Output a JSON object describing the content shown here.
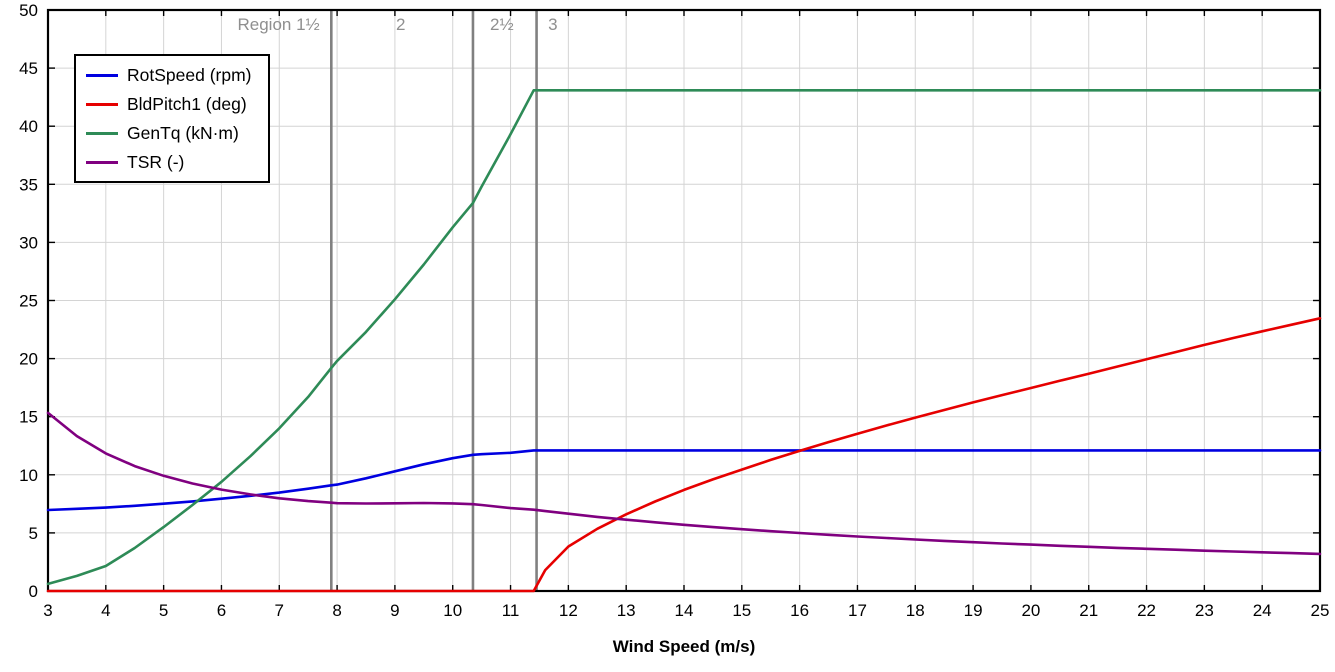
{
  "chart_data": {
    "type": "line",
    "title": "",
    "xlabel": "Wind Speed (m/s)",
    "ylabel": "",
    "xlim": [
      3,
      25
    ],
    "ylim": [
      0,
      50
    ],
    "xtick_step": 1,
    "ytick_step": 5,
    "grid": true,
    "grid_color": "#d4d4d4",
    "axis_color": "#000000",
    "legend_position": "top-left",
    "region_line_color": "#808080",
    "region_label_color": "#8f8f8f",
    "region_lines": [
      {
        "x": 7.9
      },
      {
        "x": 10.35
      },
      {
        "x": 11.45
      }
    ],
    "region_labels": [
      {
        "text": "Region 1½",
        "x": 7.7,
        "align": "end"
      },
      {
        "text": "2",
        "x": 9.1,
        "align": "middle"
      },
      {
        "text": "2½",
        "x": 10.85,
        "align": "middle"
      },
      {
        "text": "3",
        "x": 11.65,
        "align": "start"
      }
    ],
    "x": [
      3,
      3.5,
      4,
      4.5,
      5,
      5.5,
      6,
      6.5,
      7,
      7.5,
      7.9,
      8,
      8.5,
      9,
      9.5,
      10,
      10.35,
      10.5,
      11,
      11.4,
      11.6,
      12,
      12.5,
      13,
      13.5,
      14,
      14.5,
      15,
      15.5,
      16,
      16.5,
      17,
      17.5,
      18,
      18.5,
      19,
      19.5,
      20,
      20.5,
      21,
      21.5,
      22,
      22.5,
      23,
      23.5,
      24,
      24.5,
      25
    ],
    "series": [
      {
        "name": "RotSpeed",
        "label": "RotSpeed (rpm)",
        "color": "#0000e0",
        "values": [
          6.97,
          7.07,
          7.18,
          7.33,
          7.51,
          7.71,
          7.94,
          8.19,
          8.47,
          8.8,
          9.1,
          9.16,
          9.7,
          10.3,
          10.9,
          11.43,
          11.72,
          11.77,
          11.89,
          12.1,
          12.1,
          12.1,
          12.1,
          12.1,
          12.1,
          12.1,
          12.1,
          12.1,
          12.1,
          12.1,
          12.1,
          12.1,
          12.1,
          12.1,
          12.1,
          12.1,
          12.1,
          12.1,
          12.1,
          12.1,
          12.1,
          12.1,
          12.1,
          12.1,
          12.1,
          12.1,
          12.1,
          12.1
        ]
      },
      {
        "name": "BldPitch1",
        "label": "BldPitch1 (deg)",
        "color": "#e60000",
        "values": [
          0,
          0,
          0,
          0,
          0,
          0,
          0,
          0,
          0,
          0,
          0,
          0,
          0,
          0,
          0,
          0,
          0,
          0,
          0,
          0,
          1.8,
          3.83,
          5.35,
          6.6,
          7.7,
          8.7,
          9.6,
          10.45,
          11.28,
          12.06,
          12.81,
          13.54,
          14.24,
          14.92,
          15.58,
          16.23,
          16.86,
          17.47,
          18.09,
          18.7,
          19.32,
          19.94,
          20.56,
          21.18,
          21.77,
          22.35,
          22.91,
          23.47
        ]
      },
      {
        "name": "GenTq",
        "label": "GenTq (kN·m)",
        "color": "#2e8b57",
        "values": [
          0.61,
          1.3,
          2.15,
          3.7,
          5.5,
          7.4,
          9.4,
          11.6,
          14.0,
          16.7,
          19.2,
          19.8,
          22.3,
          25.1,
          28.1,
          31.3,
          33.4,
          34.8,
          39.3,
          43.09,
          43.09,
          43.09,
          43.09,
          43.09,
          43.09,
          43.09,
          43.09,
          43.09,
          43.09,
          43.09,
          43.09,
          43.09,
          43.09,
          43.09,
          43.09,
          43.09,
          43.09,
          43.09,
          43.09,
          43.09,
          43.09,
          43.09,
          43.09,
          43.09,
          43.09,
          43.09,
          43.09,
          43.09
        ]
      },
      {
        "name": "TSR",
        "label": "TSR (-)",
        "color": "#800080",
        "values": [
          15.33,
          13.33,
          11.84,
          10.75,
          9.91,
          9.25,
          8.73,
          8.31,
          7.98,
          7.74,
          7.6,
          7.56,
          7.53,
          7.55,
          7.57,
          7.54,
          7.47,
          7.4,
          7.13,
          7.0,
          6.88,
          6.65,
          6.38,
          6.14,
          5.91,
          5.7,
          5.5,
          5.32,
          5.15,
          4.99,
          4.84,
          4.69,
          4.56,
          4.43,
          4.31,
          4.2,
          4.09,
          3.99,
          3.89,
          3.8,
          3.71,
          3.63,
          3.55,
          3.47,
          3.4,
          3.33,
          3.26,
          3.19
        ]
      }
    ]
  }
}
